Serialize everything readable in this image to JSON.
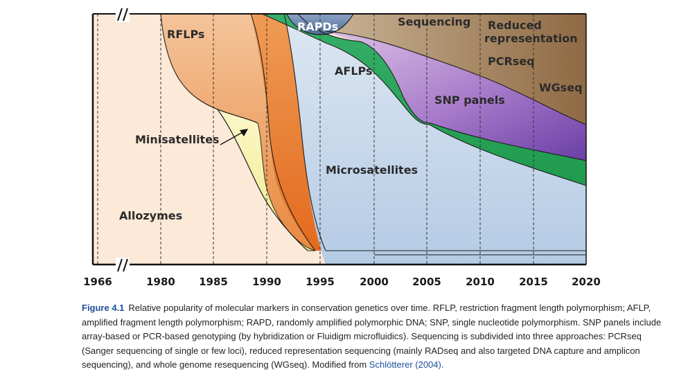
{
  "chart_data": {
    "type": "area",
    "x_ticks": [
      "1966",
      "1980",
      "1985",
      "1990",
      "1995",
      "2000",
      "2005",
      "2010",
      "2015",
      "2020"
    ],
    "axis_break": true,
    "gridlines": "dashed-vertical",
    "regions": [
      {
        "name": "Allozymes",
        "color": "#fce9d8"
      },
      {
        "name": "RFLPs",
        "color": "#f2b07d"
      },
      {
        "name": "Minisatellites",
        "color": "#f7f3b3"
      },
      {
        "name": "Microsatellites",
        "color": "#c3d6eb"
      },
      {
        "name": "RAPDs",
        "color": "#6a86ad"
      },
      {
        "name": "AFLPs",
        "color": "#25a156"
      },
      {
        "name": "SNP panels",
        "color": "#a070c4"
      },
      {
        "name": "Sequencing",
        "color": "#a88763"
      },
      {
        "name": "Reduced representation",
        "color": "#a88763"
      },
      {
        "name": "PCRseq",
        "color": "#a88763"
      },
      {
        "name": "WGseq",
        "color": "#a88763"
      }
    ]
  },
  "caption": {
    "figure_number": "Figure 4.1",
    "text": "Relative popularity of molecular markers in conservation genetics over time. RFLP, restriction fragment length polymorphism; AFLP, amplified fragment length polymorphism; RAPD, randomly amplified polymorphic DNA; SNP, single nucleotide polymorphism. SNP panels include array-based or PCR-based genotyping (by hybridization or Fluidigm microfluidics). Sequencing is subdivided into three approaches: PCRseq (Sanger sequencing of single or few loci), reduced representation sequencing (mainly RADseq and also targeted DNA capture and amplicon sequencing), and whole genome resequencing (WGseq). Modified from",
    "citation": "Schlötterer (2004)."
  }
}
